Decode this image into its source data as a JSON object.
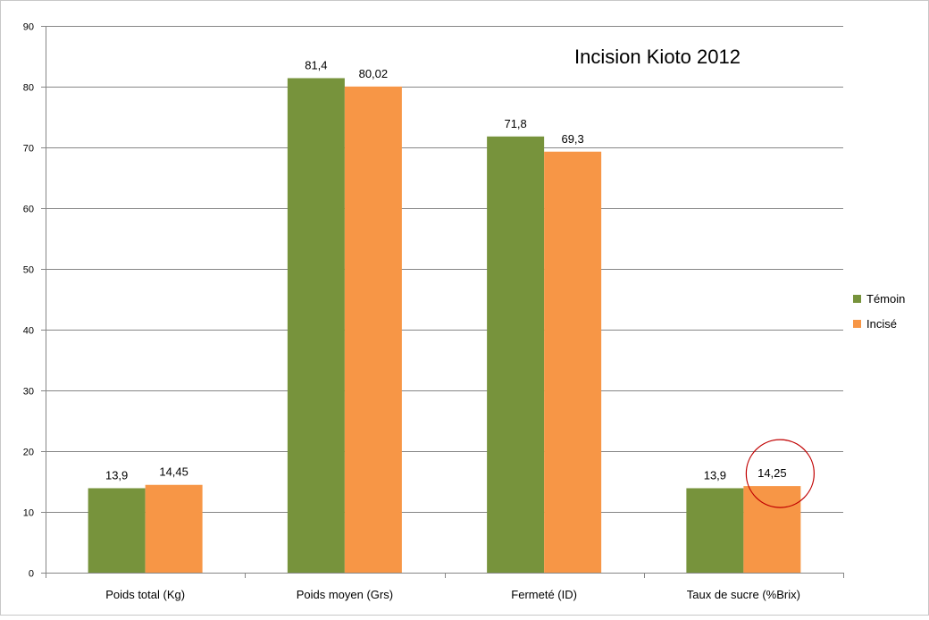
{
  "chart_data": {
    "type": "bar",
    "title": "Incision Kioto 2012",
    "categories": [
      "Poids total (Kg)",
      "Poids moyen (Grs)",
      "Fermeté (ID)",
      "Taux de sucre (%Brix)"
    ],
    "series": [
      {
        "name": "Témoin",
        "values": [
          13.9,
          81.4,
          71.8,
          13.9
        ],
        "labels": [
          "13,9",
          "81,4",
          "71,8",
          "13,9"
        ],
        "color": "#77933c"
      },
      {
        "name": "Incisé",
        "values": [
          14.45,
          80.02,
          69.3,
          14.25
        ],
        "labels": [
          "14,45",
          "80,02",
          "69,3",
          "14,25"
        ],
        "color": "#f79646"
      }
    ],
    "ylim": [
      0,
      90
    ],
    "yticks": [
      0,
      10,
      20,
      30,
      40,
      50,
      60,
      70,
      80,
      90
    ],
    "grid": true,
    "legend_position": "right",
    "annotation": {
      "type": "circle",
      "target": "Incisé / Taux de sucre (%Brix)",
      "color": "#c00000"
    }
  }
}
